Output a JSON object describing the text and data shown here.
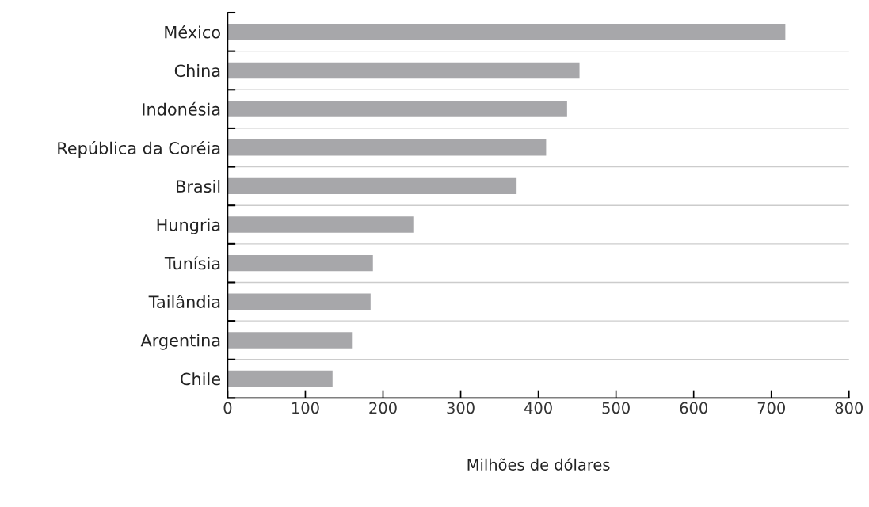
{
  "chart_data": {
    "type": "bar",
    "orientation": "horizontal",
    "xlabel": "Milhões de dólares",
    "categories": [
      "México",
      "China",
      "Indonésia",
      "República da Coréia",
      "Brasil",
      "Hungria",
      "Tunísia",
      "Tailândia",
      "Argentina",
      "Chile"
    ],
    "values": [
      718,
      453,
      437,
      410,
      372,
      239,
      187,
      184,
      160,
      135
    ],
    "color": "#a7a7aa",
    "xlim": [
      0,
      800
    ],
    "xticks": [
      0,
      100,
      200,
      300,
      400,
      500,
      600,
      700,
      800
    ],
    "grid": "y",
    "legend": false
  }
}
